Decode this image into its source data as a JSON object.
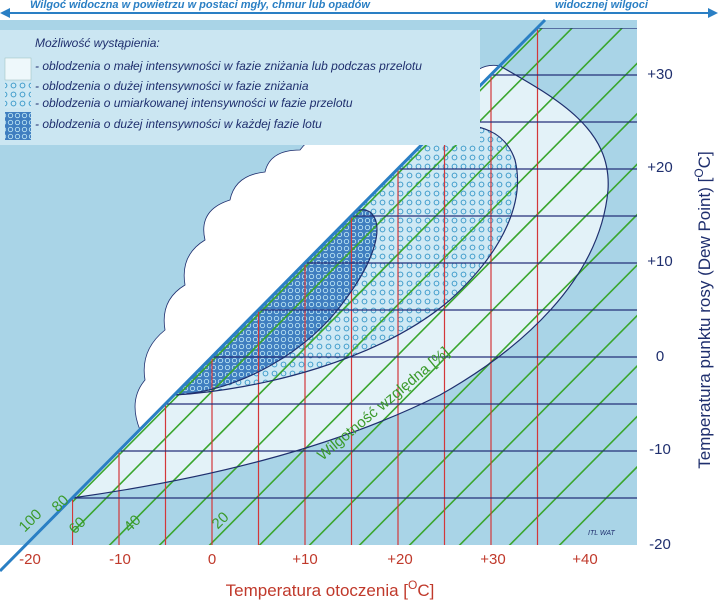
{
  "header": {
    "left": "Wilgoć widoczna w powietrzu w postaci mgły, chmur lub opadów",
    "right": "widocznej wilgoci"
  },
  "legend": {
    "title": "Możliwość wystąpienia:",
    "items": [
      "- oblodzenia o małej intensywności w fazie zniżania lub podczas przelotu",
      "- oblodzenia o dużej intensywności w fazie zniżania",
      "- oblodzenia o umiarkowanej intensywności w fazie przelotu",
      "- oblodzenia o dużej intensywności w każdej fazie lotu"
    ]
  },
  "x_axis": {
    "ticks": [
      "-20",
      "-10",
      "0",
      "+10",
      "+20",
      "+30",
      "+40"
    ],
    "label": {
      "text": "Temperatura otoczenia [",
      "sup": "O",
      "end": "C]"
    }
  },
  "y_axis": {
    "ticks": [
      "+30",
      "+20",
      "+10",
      "0",
      "-10",
      "-20"
    ],
    "label": {
      "text": "Temperatura punktu rosy (Dew Point) [",
      "sup": "O",
      "end": "C]"
    }
  },
  "rh_labels": [
    "100",
    "80",
    "60",
    "40",
    "20"
  ],
  "rh_title": "Wilgotność względna [%]",
  "credit": "ITL WAT"
}
